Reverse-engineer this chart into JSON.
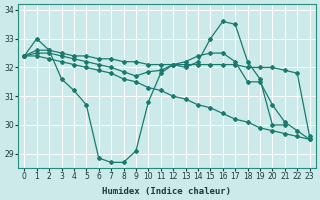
{
  "xlabel": "Humidex (Indice chaleur)",
  "background_color": "#cceaea",
  "grid_color": "#ffffff",
  "line_color": "#1a7a6e",
  "xlim": [
    -0.5,
    23.5
  ],
  "ylim": [
    28.5,
    34.2
  ],
  "xticks": [
    0,
    1,
    2,
    3,
    4,
    5,
    6,
    7,
    8,
    9,
    10,
    11,
    12,
    13,
    14,
    15,
    16,
    17,
    18,
    19,
    20,
    21,
    22,
    23
  ],
  "yticks": [
    29,
    30,
    31,
    32,
    33,
    34
  ],
  "series": [
    {
      "x": [
        0,
        1,
        2,
        3,
        4,
        5,
        6,
        7,
        8,
        9,
        10,
        11,
        12,
        13,
        14,
        15,
        16,
        17,
        18,
        19,
        20,
        21
      ],
      "y": [
        32.4,
        33.0,
        32.6,
        31.6,
        31.2,
        30.7,
        28.85,
        28.7,
        28.7,
        29.1,
        30.8,
        31.8,
        32.1,
        32.0,
        32.2,
        33.0,
        33.6,
        33.5,
        32.2,
        31.6,
        30.0,
        30.0
      ]
    },
    {
      "x": [
        0,
        1,
        2,
        3,
        4,
        5,
        6,
        7,
        8,
        9,
        10,
        11,
        12,
        13,
        14,
        15,
        16,
        17,
        18,
        19,
        20,
        21,
        22,
        23
      ],
      "y": [
        32.4,
        32.4,
        32.3,
        32.2,
        32.1,
        32.0,
        31.9,
        31.8,
        31.6,
        31.5,
        31.3,
        31.2,
        31.0,
        30.9,
        30.7,
        30.6,
        30.4,
        30.2,
        30.1,
        29.9,
        29.8,
        29.7,
        29.6,
        29.5
      ]
    },
    {
      "x": [
        0,
        1,
        2,
        3,
        4,
        5,
        6,
        7,
        8,
        9,
        10,
        11,
        12,
        13,
        14,
        15,
        16,
        17,
        18,
        19,
        20,
        21,
        22,
        23
      ],
      "y": [
        32.4,
        32.6,
        32.6,
        32.5,
        32.4,
        32.4,
        32.3,
        32.3,
        32.2,
        32.2,
        32.1,
        32.1,
        32.1,
        32.1,
        32.1,
        32.1,
        32.1,
        32.1,
        32.0,
        32.0,
        32.0,
        31.9,
        31.8,
        29.6
      ]
    },
    {
      "x": [
        0,
        1,
        2,
        3,
        4,
        5,
        6,
        7,
        8,
        9,
        10,
        11,
        12,
        13,
        14,
        15,
        16,
        17,
        18,
        19,
        20,
        21,
        22,
        23
      ],
      "y": [
        32.4,
        32.5,
        32.5,
        32.4,
        32.3,
        32.2,
        32.1,
        32.0,
        31.85,
        31.7,
        31.85,
        31.9,
        32.1,
        32.2,
        32.4,
        32.5,
        32.5,
        32.2,
        31.5,
        31.5,
        30.7,
        30.1,
        29.8,
        29.5
      ]
    }
  ]
}
